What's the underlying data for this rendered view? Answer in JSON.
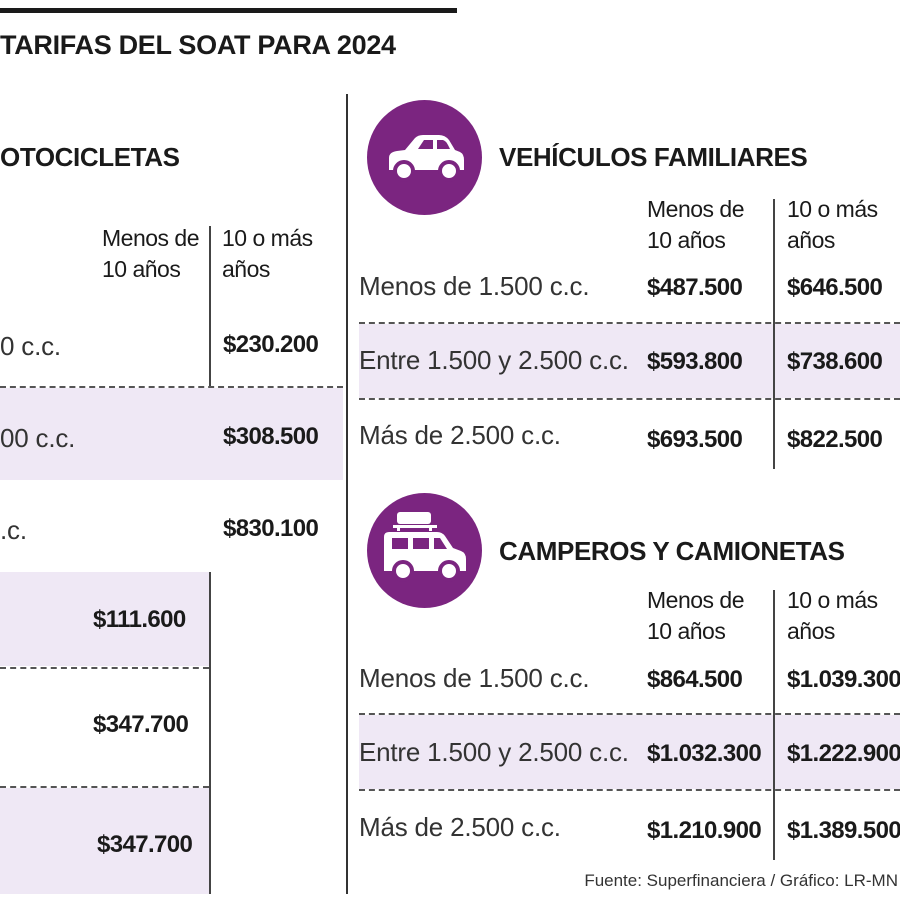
{
  "title": "TARIFAS DEL SOAT PARA 2024",
  "source": "Fuente: Superfinanciera / Gráfico: LR-MN",
  "motos": {
    "title": "OTOCICLETAS",
    "headers": [
      "Menos de\n10 años",
      "10 o más\naños"
    ],
    "rows": [
      {
        "label": "0 c.c.",
        "val_old": "$230.200"
      },
      {
        "label": "00 c.c.",
        "val_old": "$308.500"
      },
      {
        "label": ".c.",
        "val_old": "$830.100"
      }
    ],
    "extra_values": [
      "$111.600",
      "$347.700",
      "$347.700"
    ]
  },
  "familiares": {
    "title": "VEHÍCULOS FAMILIARES",
    "icon": "car-icon",
    "headers": [
      "Menos de\n10 años",
      "10 o más\naños"
    ],
    "rows": [
      {
        "label": "Menos de 1.500 c.c.",
        "val_new": "$487.500",
        "val_old": "$646.500"
      },
      {
        "label": "Entre 1.500 y 2.500 c.c.",
        "val_new": "$593.800",
        "val_old": "$738.600"
      },
      {
        "label": "Más de 2.500 c.c.",
        "val_new": "$693.500",
        "val_old": "$822.500"
      }
    ]
  },
  "camperos": {
    "title": "CAMPEROS Y CAMIONETAS",
    "icon": "suv-with-roof-rack-icon",
    "headers": [
      "Menos de\n10 años",
      "10 o más\naños"
    ],
    "rows": [
      {
        "label": "Menos de 1.500 c.c.",
        "val_new": "$864.500",
        "val_old": "$1.039.300"
      },
      {
        "label": "Entre 1.500 y 2.500 c.c.",
        "val_new": "$1.032.300",
        "val_old": "$1.222.900"
      },
      {
        "label": "Más de 2.500 c.c.",
        "val_new": "$1.210.900",
        "val_old": "$1.389.500"
      }
    ]
  },
  "colors": {
    "accent": "#7b2580",
    "band": "#efe8f5",
    "text": "#1a1a1a"
  }
}
